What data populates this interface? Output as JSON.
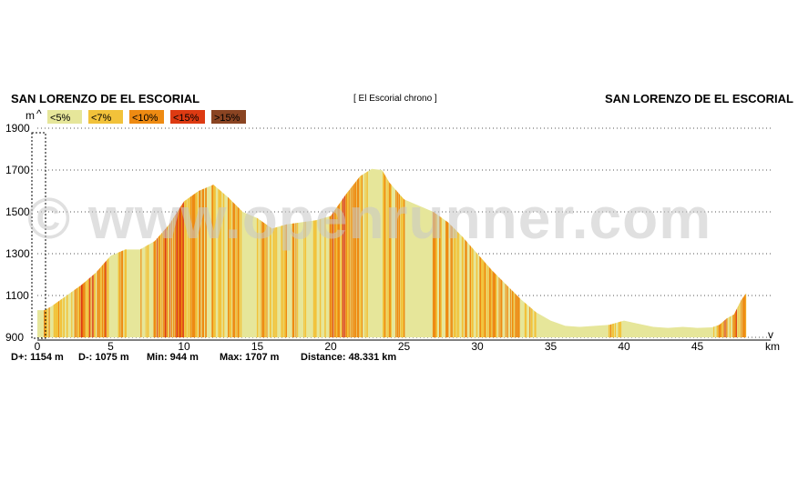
{
  "header": {
    "start_name": "SAN LORENZO DE EL ESCORIAL",
    "route_name": "[ El Escorial chrono ]",
    "end_name": "SAN LORENZO DE EL ESCORIAL"
  },
  "watermark": "© www.openrunner.com",
  "legend": [
    {
      "label": "<5%",
      "color": "#e6e69a"
    },
    {
      "label": "<7%",
      "color": "#f2c23a"
    },
    {
      "label": "<10%",
      "color": "#ee8a12"
    },
    {
      "label": "<15%",
      "color": "#dd3a12"
    },
    {
      "label": ">15%",
      "color": "#8a4422"
    }
  ],
  "stats": {
    "d_plus": "D+: 1154 m",
    "d_minus": "D-: 1075 m",
    "min": "Min: 944 m",
    "max": "Max: 1707 m",
    "distance": "Distance: 48.331 km"
  },
  "chart_data": {
    "type": "area",
    "title": "",
    "xlabel": "km",
    "ylabel": "m",
    "xlim": [
      0,
      50
    ],
    "ylim": [
      900,
      1900
    ],
    "x_ticks": [
      0,
      5,
      10,
      15,
      20,
      25,
      30,
      35,
      40,
      45
    ],
    "y_ticks": [
      900,
      1100,
      1300,
      1500,
      1700,
      1900
    ],
    "grid": true,
    "series": [
      {
        "x": [
          0,
          0.5,
          1,
          2,
          3,
          4,
          5,
          6,
          7,
          8,
          9,
          10,
          11,
          12,
          13,
          14,
          15,
          16,
          17,
          18,
          19,
          20,
          21,
          22,
          22.8,
          23.5,
          24,
          25,
          26,
          27,
          28,
          29,
          30,
          31,
          32,
          33,
          34,
          35,
          36,
          37,
          38,
          39,
          40,
          41,
          42,
          43,
          44,
          45,
          46,
          46.5,
          47,
          47.5,
          48,
          48.331
        ],
        "y": [
          1030,
          1030,
          1050,
          1100,
          1150,
          1210,
          1290,
          1320,
          1320,
          1360,
          1440,
          1550,
          1600,
          1630,
          1570,
          1500,
          1470,
          1420,
          1440,
          1450,
          1460,
          1480,
          1580,
          1670,
          1705,
          1700,
          1640,
          1560,
          1530,
          1500,
          1450,
          1380,
          1300,
          1220,
          1150,
          1080,
          1020,
          980,
          955,
          950,
          955,
          960,
          980,
          965,
          950,
          945,
          950,
          945,
          948,
          960,
          990,
          1010,
          1080,
          1110
        ]
      }
    ]
  }
}
